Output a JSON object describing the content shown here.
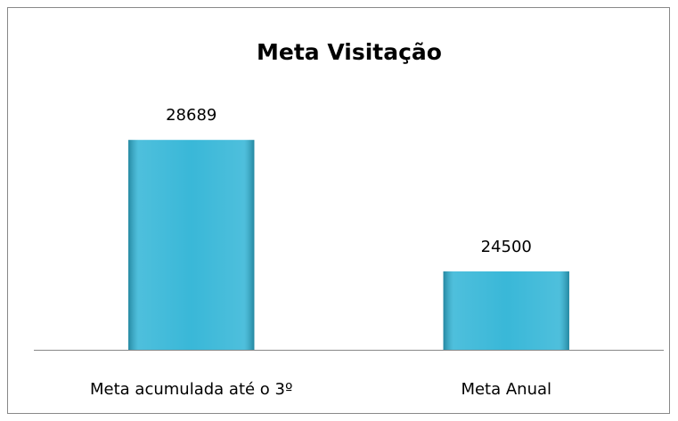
{
  "chart_data": {
    "type": "bar",
    "title": "Meta Visitação",
    "categories": [
      "Meta acumulada até o 3º",
      "Meta Anual"
    ],
    "values": [
      28689,
      24500
    ],
    "color": "#2fb4d6",
    "ylim": [
      22000,
      30000
    ]
  }
}
